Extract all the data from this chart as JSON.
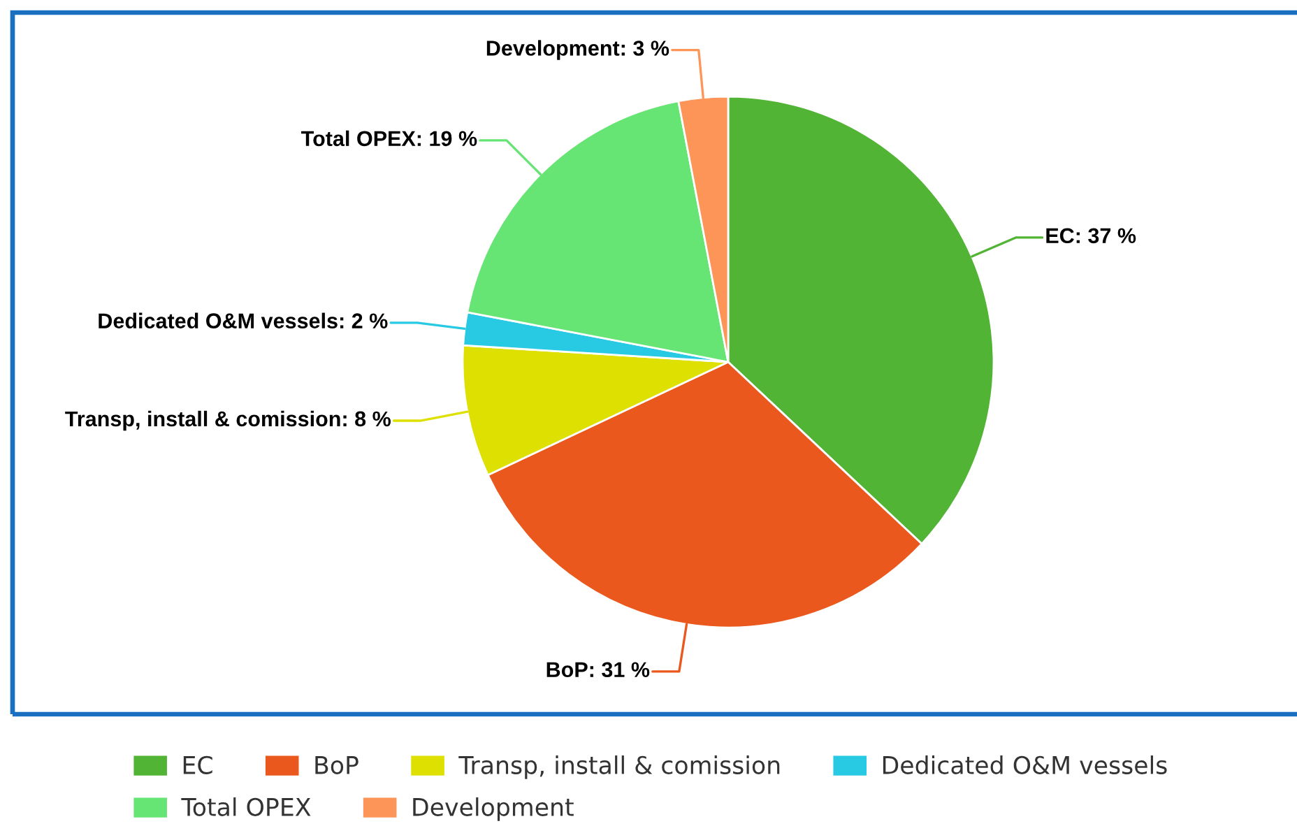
{
  "chart_data": {
    "type": "pie",
    "categories": [
      "EC",
      "BoP",
      "Transp, install & comission",
      "Dedicated O&M vessels",
      "Total OPEX",
      "Development"
    ],
    "values": [
      37,
      31,
      8,
      2,
      19,
      3
    ],
    "colors": [
      "#52b435",
      "#eb581e",
      "#dde000",
      "#27c9e3",
      "#66e474",
      "#fe9558"
    ],
    "value_labels": [
      "EC: 37 %",
      "BoP: 31 %",
      "Transp, install & comission: 8 %",
      "Dedicated O&M vessels: 2 %",
      "Total OPEX: 19 %",
      "Development: 3 %"
    ],
    "legend": "bottom"
  }
}
